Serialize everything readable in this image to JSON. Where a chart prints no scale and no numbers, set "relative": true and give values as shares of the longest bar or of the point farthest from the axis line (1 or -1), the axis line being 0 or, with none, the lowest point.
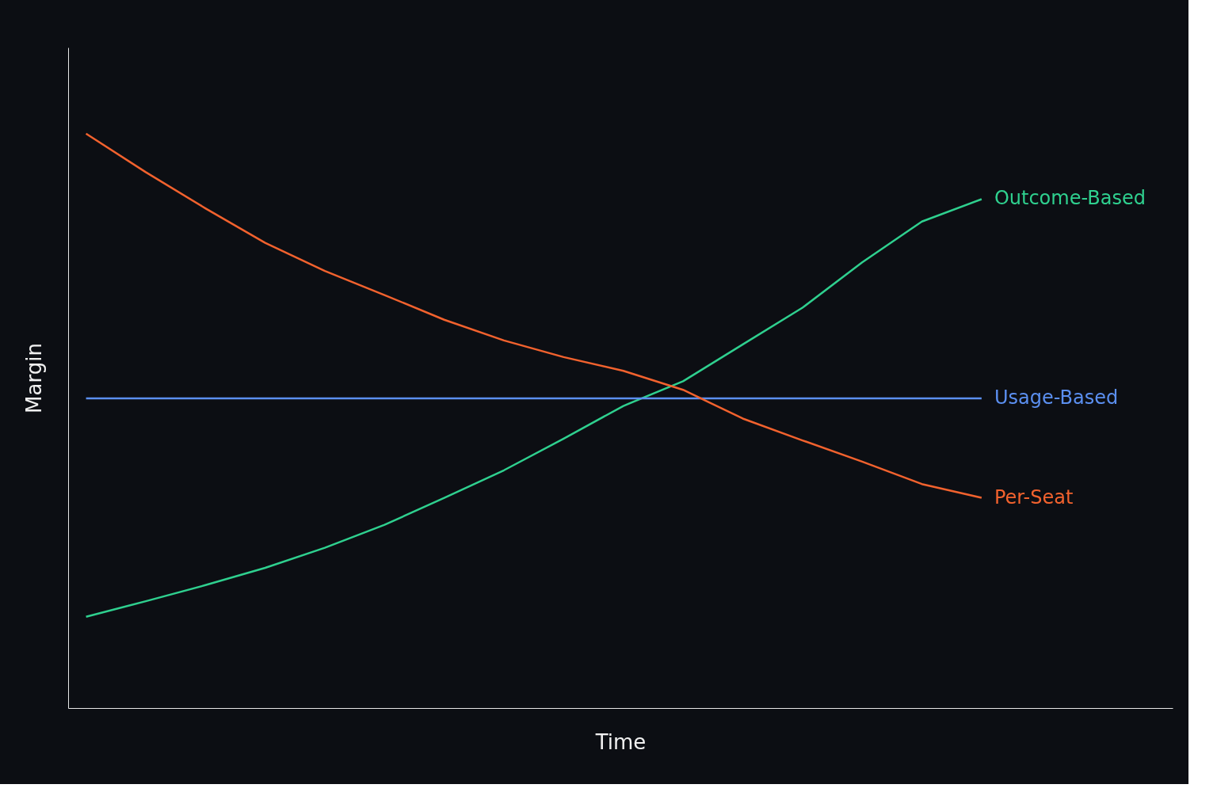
{
  "chart_data": {
    "type": "line",
    "relative": true,
    "xlabel": "Time",
    "ylabel": "Margin",
    "legend": false,
    "grid": false,
    "marker": "none",
    "line_style": "solid",
    "categories": [
      null,
      null,
      null,
      null,
      null,
      null,
      null,
      null,
      null,
      null,
      null,
      null,
      null,
      null,
      null,
      null
    ],
    "series": [
      {
        "name": "Outcome-Based",
        "color": "#2fd08f",
        "values": [
          0.159,
          0.186,
          0.214,
          0.244,
          0.279,
          0.319,
          0.366,
          0.414,
          0.469,
          0.526,
          0.569,
          0.633,
          0.697,
          0.776,
          0.847,
          0.886
        ]
      },
      {
        "name": "Usage-Based",
        "color": "#5b8ff0",
        "values": [
          0.539,
          0.539,
          0.539,
          0.539,
          0.539,
          0.539,
          0.539,
          0.539,
          0.539,
          0.539,
          0.539,
          0.539,
          0.539,
          0.539,
          0.539,
          0.539
        ]
      },
      {
        "name": "Per-Seat",
        "color": "#f2622e",
        "values": [
          1.0,
          0.933,
          0.87,
          0.81,
          0.761,
          0.719,
          0.676,
          0.64,
          0.611,
          0.587,
          0.554,
          0.504,
          0.466,
          0.429,
          0.39,
          0.366
        ]
      }
    ]
  }
}
